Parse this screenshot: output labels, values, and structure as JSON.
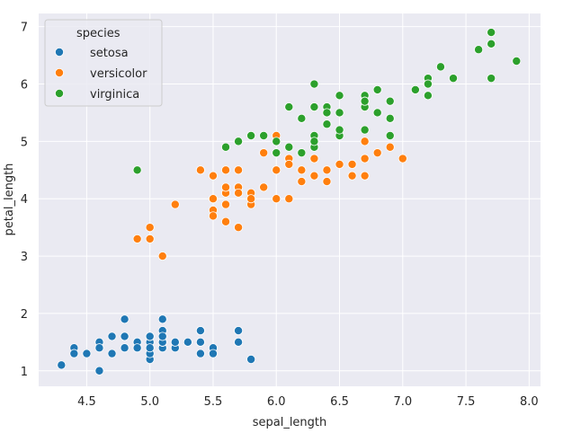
{
  "chart_data": {
    "type": "scatter",
    "title": "",
    "xlabel": "sepal_length",
    "ylabel": "petal_length",
    "xlim": [
      4.12,
      8.09
    ],
    "ylim": [
      0.73,
      7.23
    ],
    "xticks": [
      "4.5",
      "5.0",
      "5.5",
      "6.0",
      "6.5",
      "7.0",
      "7.5",
      "8.0"
    ],
    "yticks": [
      "1",
      "2",
      "3",
      "4",
      "5",
      "6",
      "7"
    ],
    "grid": true,
    "background": "#eaeaf2",
    "legend": {
      "title": "species",
      "placement": "top-left"
    },
    "series": [
      {
        "name": "setosa",
        "color": "#1f77b4",
        "x": [
          5.1,
          4.9,
          4.7,
          4.6,
          5.0,
          5.4,
          4.6,
          5.0,
          4.4,
          4.9,
          5.4,
          4.8,
          4.8,
          4.3,
          5.8,
          5.7,
          5.4,
          5.1,
          5.7,
          5.1,
          5.4,
          5.1,
          4.6,
          5.1,
          4.8,
          5.0,
          5.0,
          5.2,
          5.2,
          4.7,
          4.8,
          5.4,
          5.2,
          5.5,
          4.9,
          5.0,
          5.5,
          4.9,
          4.4,
          5.1,
          5.0,
          4.5,
          4.4,
          5.0,
          5.1,
          4.8,
          5.1,
          4.6,
          5.3,
          5.0
        ],
        "y": [
          1.4,
          1.4,
          1.3,
          1.5,
          1.4,
          1.7,
          1.4,
          1.5,
          1.4,
          1.5,
          1.5,
          1.6,
          1.4,
          1.1,
          1.2,
          1.5,
          1.3,
          1.4,
          1.7,
          1.5,
          1.7,
          1.5,
          1.0,
          1.7,
          1.9,
          1.6,
          1.6,
          1.5,
          1.4,
          1.6,
          1.6,
          1.5,
          1.5,
          1.4,
          1.5,
          1.2,
          1.3,
          1.4,
          1.3,
          1.5,
          1.3,
          1.3,
          1.3,
          1.6,
          1.9,
          1.4,
          1.6,
          1.4,
          1.5,
          1.4
        ]
      },
      {
        "name": "versicolor",
        "color": "#ff7f0e",
        "x": [
          7.0,
          6.4,
          6.9,
          5.5,
          6.5,
          5.7,
          6.3,
          4.9,
          6.6,
          5.2,
          5.0,
          5.9,
          6.0,
          6.1,
          5.6,
          6.7,
          5.6,
          5.8,
          6.2,
          5.6,
          5.9,
          6.1,
          6.3,
          6.1,
          6.4,
          6.6,
          6.8,
          6.7,
          6.0,
          5.7,
          5.5,
          5.5,
          5.8,
          6.0,
          5.4,
          6.0,
          6.7,
          6.3,
          5.6,
          5.5,
          5.5,
          6.1,
          5.8,
          5.0,
          5.6,
          5.7,
          5.7,
          6.2,
          5.1,
          5.7
        ],
        "y": [
          4.7,
          4.5,
          4.9,
          4.0,
          4.6,
          4.5,
          4.7,
          3.3,
          4.6,
          3.9,
          3.5,
          4.2,
          4.0,
          4.7,
          3.6,
          4.4,
          4.5,
          4.1,
          4.5,
          3.9,
          4.8,
          4.0,
          4.9,
          4.7,
          4.3,
          4.4,
          4.8,
          5.0,
          4.5,
          3.5,
          3.8,
          3.7,
          3.9,
          5.1,
          4.5,
          4.5,
          4.7,
          4.4,
          4.1,
          4.0,
          4.4,
          4.6,
          4.0,
          3.3,
          4.2,
          4.2,
          4.2,
          4.3,
          3.0,
          4.1
        ]
      },
      {
        "name": "virginica",
        "color": "#2ca02c",
        "x": [
          6.3,
          5.8,
          7.1,
          6.3,
          6.5,
          7.6,
          4.9,
          7.3,
          6.7,
          7.2,
          6.5,
          6.4,
          6.8,
          5.7,
          5.8,
          6.4,
          6.5,
          7.7,
          7.7,
          6.0,
          6.9,
          5.6,
          7.7,
          6.3,
          6.7,
          7.2,
          6.2,
          6.1,
          6.4,
          7.2,
          7.4,
          7.9,
          6.4,
          6.3,
          6.1,
          7.7,
          6.3,
          6.4,
          6.0,
          6.9,
          6.7,
          6.9,
          5.8,
          6.8,
          6.7,
          6.7,
          6.3,
          6.5,
          6.2,
          5.9
        ],
        "y": [
          6.0,
          5.1,
          5.9,
          5.6,
          5.8,
          6.6,
          4.5,
          6.3,
          5.8,
          6.1,
          5.1,
          5.3,
          5.5,
          5.0,
          5.1,
          5.3,
          5.5,
          6.7,
          6.9,
          5.0,
          5.7,
          4.9,
          6.7,
          4.9,
          5.7,
          6.0,
          4.8,
          4.9,
          5.6,
          5.8,
          6.1,
          6.4,
          5.6,
          5.1,
          5.6,
          6.1,
          5.6,
          5.5,
          4.8,
          5.4,
          5.6,
          5.1,
          5.1,
          5.9,
          5.7,
          5.2,
          5.0,
          5.2,
          5.4,
          5.1
        ]
      }
    ]
  }
}
